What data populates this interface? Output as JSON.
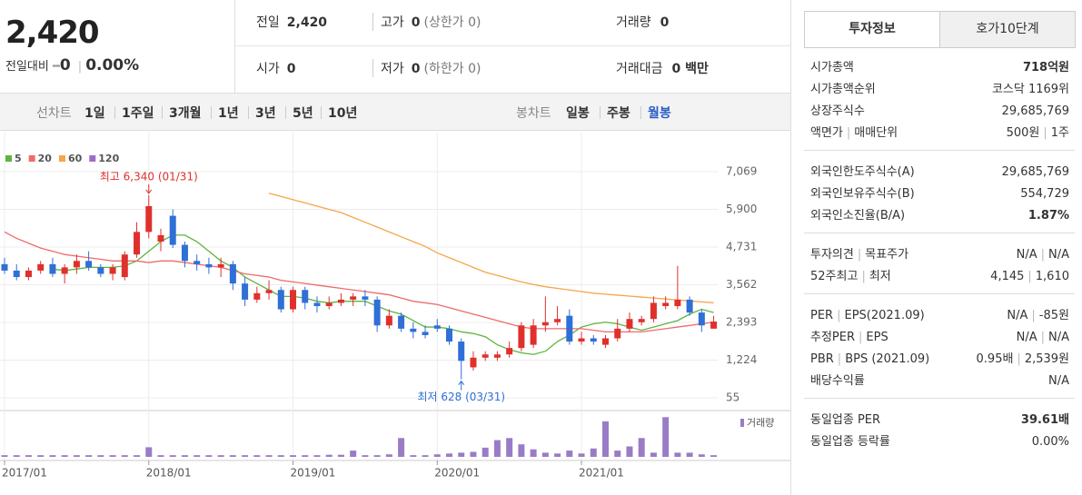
{
  "quote": {
    "price": "2,420",
    "change_label": "전일대비",
    "change": "0",
    "change_pct": "0.00%"
  },
  "summary": {
    "rows": [
      [
        {
          "label": "전일",
          "value": "2,420"
        },
        {
          "label": "고가",
          "value": "0",
          "extra": "(상한가 0)"
        },
        {
          "label": "거래량",
          "value": "0"
        }
      ],
      [
        {
          "label": "시가",
          "value": "0"
        },
        {
          "label": "저가",
          "value": "0",
          "extra": "(하한가 0)"
        },
        {
          "label": "거래대금",
          "value": "0 백만"
        }
      ]
    ]
  },
  "toolbar": {
    "line_label": "선차트",
    "line_periods": [
      "1일",
      "1주일",
      "3개월",
      "1년",
      "3년",
      "5년",
      "10년"
    ],
    "candle_label": "봉차트",
    "candle_periods": [
      "일봉",
      "주봉",
      "월봉"
    ],
    "selected": "월봉"
  },
  "tabs": {
    "items": [
      "투자정보",
      "호가10단계"
    ],
    "active": "투자정보"
  },
  "info": {
    "groups": [
      [
        {
          "label": [
            "시가총액"
          ],
          "value": [
            "718억원"
          ],
          "emphasis": true
        },
        {
          "label": [
            "시가총액순위"
          ],
          "value": [
            "코스닥 1169위"
          ]
        },
        {
          "label": [
            "상장주식수"
          ],
          "value": [
            "29,685,769"
          ]
        },
        {
          "label": [
            "액면가",
            "매매단위"
          ],
          "value": [
            "500원",
            "1주"
          ]
        }
      ],
      [
        {
          "label": [
            "외국인한도주식수(A)"
          ],
          "value": [
            "29,685,769"
          ]
        },
        {
          "label": [
            "외국인보유주식수(B)"
          ],
          "value": [
            "554,729"
          ]
        },
        {
          "label": [
            "외국인소진율(B/A)"
          ],
          "value": [
            "1.87%"
          ],
          "emphasis": true
        }
      ],
      [
        {
          "label": [
            "투자의견",
            "목표주가"
          ],
          "value": [
            "N/A",
            "N/A"
          ]
        },
        {
          "label": [
            "52주최고",
            "최저"
          ],
          "value": [
            "4,145",
            "1,610"
          ]
        }
      ],
      [
        {
          "label": [
            "PER",
            "EPS(2021.09)"
          ],
          "value": [
            "N/A",
            "-85원"
          ]
        },
        {
          "label": [
            "추정PER",
            "EPS"
          ],
          "value": [
            "N/A",
            "N/A"
          ]
        },
        {
          "label": [
            "PBR",
            "BPS (2021.09)"
          ],
          "value": [
            "0.95배",
            "2,539원"
          ]
        },
        {
          "label": [
            "배당수익률"
          ],
          "value": [
            "N/A"
          ]
        }
      ],
      [
        {
          "label": [
            "동일업종 PER"
          ],
          "value": [
            "39.61배"
          ],
          "emphasis": true
        },
        {
          "label": [
            "동일업종 등락률"
          ],
          "value": [
            "0.00%"
          ]
        }
      ]
    ]
  },
  "chart_data": {
    "type": "candlestick",
    "categories": [
      "2017/01",
      null,
      null,
      null,
      null,
      null,
      null,
      null,
      null,
      null,
      null,
      null,
      "2018/01",
      null,
      null,
      null,
      null,
      null,
      null,
      null,
      null,
      null,
      null,
      null,
      "2019/01",
      null,
      null,
      null,
      null,
      null,
      null,
      null,
      null,
      null,
      null,
      null,
      "2020/01",
      null,
      null,
      null,
      null,
      null,
      null,
      null,
      null,
      null,
      null,
      null,
      "2021/01",
      null,
      null,
      null,
      null,
      null,
      null,
      null,
      null,
      null,
      null,
      null
    ],
    "open": [
      4200,
      4000,
      3800,
      4000,
      4200,
      3900,
      4100,
      4300,
      4100,
      3900,
      3800,
      4500,
      5200,
      4900,
      5700,
      4800,
      4300,
      4200,
      4100,
      4200,
      3600,
      3100,
      3300,
      3400,
      2800,
      3400,
      3000,
      2900,
      3000,
      3100,
      3200,
      3100,
      2300,
      2600,
      2200,
      2100,
      2300,
      2200,
      1800,
      1000,
      1300,
      1300,
      1400,
      1600,
      1700,
      2300,
      2400,
      2600,
      1800,
      1900,
      1700,
      1900,
      2200,
      2400,
      2500,
      2900,
      2900,
      3100,
      2700,
      2200
    ],
    "high": [
      4400,
      4200,
      4100,
      4300,
      4400,
      4200,
      4500,
      4600,
      4200,
      4200,
      4600,
      5500,
      6340,
      5300,
      5900,
      4900,
      4500,
      4400,
      4400,
      4300,
      3800,
      3500,
      3700,
      3500,
      3500,
      3500,
      3200,
      3200,
      3300,
      3300,
      3400,
      3200,
      2800,
      2700,
      2400,
      2300,
      2500,
      2300,
      1900,
      1500,
      1500,
      1500,
      1800,
      2400,
      2500,
      3200,
      2900,
      2800,
      2100,
      2000,
      2000,
      2500,
      2700,
      2600,
      3200,
      3200,
      4145,
      3200,
      2800,
      2600
    ],
    "low": [
      3900,
      3700,
      3700,
      3900,
      3800,
      3600,
      3900,
      4000,
      3800,
      3700,
      3700,
      4400,
      5000,
      4600,
      4700,
      4100,
      4000,
      3900,
      3800,
      3400,
      2900,
      3000,
      3100,
      2700,
      2700,
      2800,
      2700,
      2800,
      2900,
      2900,
      2900,
      2100,
      2200,
      2100,
      1900,
      1900,
      2100,
      1700,
      628,
      900,
      1200,
      1200,
      1300,
      1500,
      1600,
      2100,
      2300,
      1700,
      1700,
      1700,
      1600,
      1800,
      2100,
      2300,
      2400,
      2800,
      2800,
      2600,
      2100,
      2200
    ],
    "close": [
      4000,
      3800,
      4000,
      4200,
      3900,
      4100,
      4300,
      4100,
      3900,
      4100,
      4500,
      5200,
      6000,
      5100,
      4800,
      4300,
      4200,
      4100,
      4200,
      3600,
      3100,
      3300,
      3400,
      2800,
      3400,
      3000,
      2900,
      3000,
      3100,
      3200,
      3100,
      2300,
      2600,
      2200,
      2100,
      2000,
      2200,
      1800,
      1200,
      1300,
      1400,
      1400,
      1600,
      2300,
      2300,
      2400,
      2500,
      1800,
      1900,
      1800,
      1900,
      2200,
      2500,
      2500,
      3000,
      3000,
      3100,
      2700,
      2300,
      2420
    ],
    "ylim": [
      55,
      7069
    ],
    "yticks": [
      {
        "value": 7069,
        "label": "7,069"
      },
      {
        "value": 5900,
        "label": "5,900"
      },
      {
        "value": 4731,
        "label": "4,731"
      },
      {
        "value": 3562,
        "label": "3,562"
      },
      {
        "value": 2393,
        "label": "2,393"
      },
      {
        "value": 1224,
        "label": "1,224"
      },
      55
    ],
    "up_color": "#e0302c",
    "down_color": "#2f6fd6",
    "ma": [
      {
        "name": "5",
        "color": "#5cb540",
        "values": [
          null,
          null,
          null,
          null,
          4050,
          4000,
          4050,
          4100,
          4100,
          4100,
          4150,
          4300,
          4600,
          4900,
          5100,
          5100,
          4900,
          4600,
          4300,
          4100,
          3800,
          3600,
          3400,
          3200,
          3200,
          3150,
          3050,
          3000,
          3050,
          3050,
          3050,
          2900,
          2750,
          2650,
          2450,
          2250,
          2250,
          2200,
          2100,
          2050,
          1950,
          1700,
          1550,
          1450,
          1400,
          1500,
          1800,
          2000,
          2250,
          2350,
          2400,
          2350,
          2250,
          2150,
          2250,
          2350,
          2450,
          2650,
          2800,
          2700
        ]
      },
      {
        "name": "20",
        "color": "#f06a6a",
        "values": [
          5200,
          5000,
          4850,
          4700,
          4600,
          4500,
          4450,
          4400,
          4350,
          4300,
          4300,
          4300,
          4250,
          4300,
          4300,
          4250,
          4200,
          4150,
          4100,
          4000,
          3900,
          3850,
          3800,
          3700,
          3650,
          3600,
          3550,
          3500,
          3450,
          3400,
          3350,
          3300,
          3250,
          3150,
          3050,
          3000,
          2950,
          2850,
          2750,
          2650,
          2550,
          2450,
          2350,
          2250,
          2200,
          2200,
          2200,
          2200,
          2200,
          2150,
          2100,
          2100,
          2100,
          2100,
          2150,
          2200,
          2250,
          2300,
          2350,
          2400
        ]
      },
      {
        "name": "60",
        "color": "#f5a54a",
        "values": [
          null,
          null,
          null,
          null,
          null,
          null,
          null,
          null,
          null,
          null,
          null,
          null,
          null,
          null,
          null,
          null,
          null,
          null,
          null,
          null,
          null,
          null,
          6400,
          6300,
          6200,
          6100,
          6000,
          5900,
          5800,
          5650,
          5500,
          5350,
          5200,
          5050,
          4900,
          4750,
          4550,
          4400,
          4250,
          4100,
          3950,
          3850,
          3750,
          3650,
          3570,
          3500,
          3450,
          3400,
          3350,
          3300,
          3270,
          3240,
          3210,
          3180,
          3150,
          3120,
          3090,
          3060,
          3030,
          3000
        ]
      },
      {
        "name": "120",
        "color": "#9a6fcb",
        "values": [
          null,
          null,
          null,
          null,
          null,
          null,
          null,
          null,
          null,
          null,
          null,
          null,
          null,
          null,
          null,
          null,
          null,
          null,
          null,
          null,
          null,
          null,
          null,
          null,
          null,
          null,
          null,
          null,
          null,
          null,
          null,
          null,
          null,
          null,
          null,
          null,
          null,
          null,
          null,
          null,
          null,
          null,
          null,
          null,
          null,
          null,
          null,
          null,
          null,
          null,
          null,
          null,
          null,
          null,
          null,
          null,
          null,
          null,
          null,
          null
        ]
      }
    ],
    "volume_label": "거래량",
    "volume_color": "#9a7cc6",
    "vlim": [
      0,
      100
    ],
    "volume": [
      4,
      4,
      4,
      4,
      4,
      4,
      4,
      4,
      4,
      4,
      4,
      4,
      23,
      4,
      4,
      4,
      4,
      4,
      4,
      4,
      4,
      4,
      4,
      4,
      4,
      4,
      4,
      5,
      5,
      15,
      4,
      4,
      6,
      45,
      4,
      4,
      6,
      8,
      10,
      12,
      22,
      40,
      45,
      30,
      18,
      10,
      8,
      15,
      8,
      20,
      85,
      15,
      25,
      45,
      10,
      95,
      10,
      10,
      6,
      4
    ],
    "annotations": [
      "최고 6,340 (01/31)",
      "최저 628 (03/31)"
    ]
  }
}
